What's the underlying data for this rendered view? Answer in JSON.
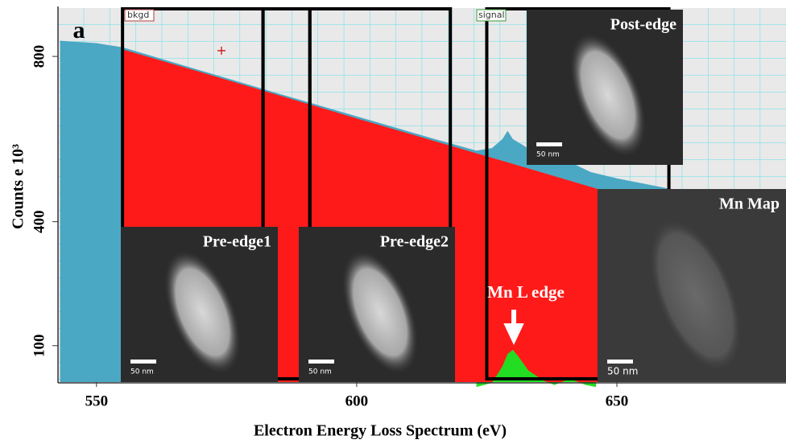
{
  "chart_data": {
    "type": "area",
    "xlabel": "Electron Energy Loss Spectrum (eV)",
    "ylabel": "Counts e 10³",
    "panel_label": "a",
    "xlim": [
      542.6,
      682.5
    ],
    "ylim": [
      12,
      917
    ],
    "xticks": [
      550,
      600,
      650
    ],
    "yticks": [
      100,
      400,
      800
    ],
    "series": [
      {
        "name": "spectrum",
        "color": "#4aa8c4",
        "x": [
          543,
          550,
          555,
          570,
          585,
          600,
          615,
          623,
          626,
          628,
          629,
          630,
          632,
          635,
          638,
          640,
          642,
          645,
          650,
          660,
          682
        ],
        "values": [
          838,
          832,
          822,
          766,
          710,
          655,
          600,
          572,
          578,
          600,
          620,
          600,
          585,
          560,
          545,
          545,
          538,
          520,
          505,
          480,
          440
        ]
      },
      {
        "name": "bkgd",
        "color": "#ff1a1a",
        "x": [
          555,
          570,
          585,
          600,
          615,
          630,
          648
        ],
        "values": [
          817,
          762,
          706,
          650,
          595,
          540,
          473
        ]
      },
      {
        "name": "signal",
        "color": "#22dd22",
        "x": [
          623,
          626,
          628,
          629,
          630,
          631,
          633,
          636,
          638,
          640,
          641,
          642,
          644,
          646
        ],
        "values": [
          0,
          10,
          50,
          80,
          90,
          75,
          40,
          15,
          5,
          15,
          20,
          15,
          5,
          0
        ]
      }
    ],
    "windows": [
      [
        555,
        582
      ],
      [
        582,
        591
      ],
      [
        591,
        618
      ],
      [
        625,
        660
      ]
    ],
    "insets": [
      {
        "label": "Pre-edge1",
        "scale_bar": "50 nm"
      },
      {
        "label": "Pre-edge2",
        "scale_bar": "50 nm"
      },
      {
        "label": "Post-edge",
        "scale_bar": "50 nm"
      },
      {
        "label": "Mn Map",
        "scale_bar": "50 nm"
      }
    ],
    "annotation": "Mn L edge"
  }
}
